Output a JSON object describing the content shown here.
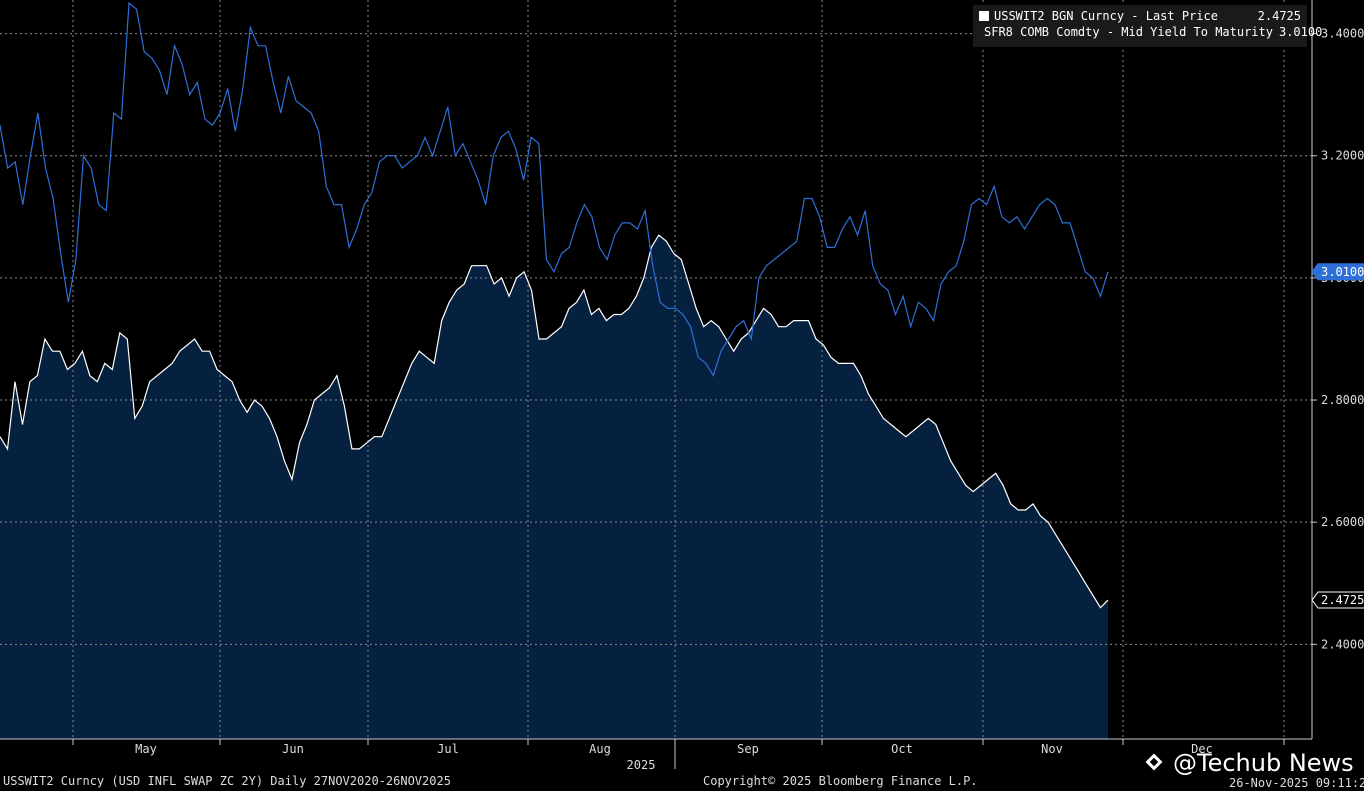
{
  "legend": {
    "items": [
      {
        "label": "USSWIT2 BGN Curncy - Last Price",
        "value": "2.4725",
        "color": "#ffffff"
      },
      {
        "label": "SFR8 COMB Comdty - Mid Yield To Maturity",
        "value": "3.0100",
        "color": "#2e6fd8"
      }
    ]
  },
  "footer": {
    "left": "USSWIT2 Curncy (USD INFL SWAP ZC 2Y) Daily 27NOV2020-26NOV2025",
    "center": "Copyright© 2025 Bloomberg Finance L.P.",
    "right": "26-Nov-2025 09:11:24"
  },
  "watermark": {
    "text": "@Techub News",
    "icon": "diamond-logo-icon"
  },
  "chart_data": {
    "type": "line",
    "x_axis": {
      "ticks": [
        "May",
        "Jun",
        "Jul",
        "Aug",
        "Sep",
        "Oct",
        "Nov",
        "Dec"
      ],
      "year_label": "2025"
    },
    "y_axis": {
      "ticks": [
        "2.4000",
        "2.6000",
        "2.8000",
        "3.0000",
        "3.2000",
        "3.4000"
      ],
      "range": [
        2.245,
        3.455
      ],
      "position": "right"
    },
    "grid": true,
    "legend_position": "top-right",
    "series": [
      {
        "name": "USSWIT2 BGN Curncy - Last Price",
        "last_value_label": "2.4725",
        "color": "#ffffff",
        "fill": "#06203f",
        "values": [
          2.74,
          2.72,
          2.83,
          2.76,
          2.83,
          2.84,
          2.9,
          2.88,
          2.88,
          2.85,
          2.86,
          2.88,
          2.84,
          2.83,
          2.86,
          2.85,
          2.91,
          2.9,
          2.77,
          2.79,
          2.83,
          2.84,
          2.85,
          2.86,
          2.88,
          2.89,
          2.9,
          2.88,
          2.88,
          2.85,
          2.84,
          2.83,
          2.8,
          2.78,
          2.8,
          2.79,
          2.77,
          2.74,
          2.7,
          2.67,
          2.73,
          2.76,
          2.8,
          2.81,
          2.82,
          2.84,
          2.79,
          2.72,
          2.72,
          2.73,
          2.74,
          2.74,
          2.77,
          2.8,
          2.83,
          2.86,
          2.88,
          2.87,
          2.86,
          2.93,
          2.96,
          2.98,
          2.99,
          3.02,
          3.02,
          3.02,
          2.99,
          3.0,
          2.97,
          3.0,
          3.01,
          2.98,
          2.9,
          2.9,
          2.91,
          2.92,
          2.95,
          2.96,
          2.98,
          2.94,
          2.95,
          2.93,
          2.94,
          2.94,
          2.95,
          2.97,
          3.0,
          3.05,
          3.07,
          3.06,
          3.04,
          3.03,
          2.99,
          2.95,
          2.92,
          2.93,
          2.92,
          2.9,
          2.88,
          2.9,
          2.91,
          2.93,
          2.95,
          2.94,
          2.92,
          2.92,
          2.93,
          2.93,
          2.93,
          2.9,
          2.89,
          2.87,
          2.86,
          2.86,
          2.86,
          2.84,
          2.81,
          2.79,
          2.77,
          2.76,
          2.75,
          2.74,
          2.75,
          2.76,
          2.77,
          2.76,
          2.73,
          2.7,
          2.68,
          2.66,
          2.65,
          2.66,
          2.67,
          2.68,
          2.66,
          2.63,
          2.62,
          2.62,
          2.63,
          2.61,
          2.6,
          2.58,
          2.56,
          2.54,
          2.52,
          2.5,
          2.48,
          2.46,
          2.4725
        ]
      },
      {
        "name": "SFR8 COMB Comdty - Mid Yield To Maturity",
        "last_value_label": "3.0100",
        "color": "#2e6fd8",
        "values": [
          3.25,
          3.18,
          3.19,
          3.12,
          3.2,
          3.27,
          3.18,
          3.13,
          3.04,
          2.96,
          3.03,
          3.2,
          3.18,
          3.12,
          3.11,
          3.27,
          3.26,
          3.45,
          3.44,
          3.37,
          3.36,
          3.34,
          3.3,
          3.38,
          3.35,
          3.3,
          3.32,
          3.26,
          3.25,
          3.27,
          3.31,
          3.24,
          3.31,
          3.41,
          3.38,
          3.38,
          3.32,
          3.27,
          3.33,
          3.29,
          3.28,
          3.27,
          3.24,
          3.15,
          3.12,
          3.12,
          3.05,
          3.08,
          3.12,
          3.14,
          3.19,
          3.2,
          3.2,
          3.18,
          3.19,
          3.2,
          3.23,
          3.2,
          3.24,
          3.28,
          3.2,
          3.22,
          3.19,
          3.16,
          3.12,
          3.2,
          3.23,
          3.24,
          3.21,
          3.16,
          3.23,
          3.22,
          3.03,
          3.01,
          3.04,
          3.05,
          3.09,
          3.12,
          3.1,
          3.05,
          3.03,
          3.07,
          3.09,
          3.09,
          3.08,
          3.11,
          3.02,
          2.96,
          2.95,
          2.95,
          2.94,
          2.92,
          2.87,
          2.86,
          2.84,
          2.88,
          2.9,
          2.92,
          2.93,
          2.9,
          3.0,
          3.02,
          3.03,
          3.04,
          3.05,
          3.06,
          3.13,
          3.13,
          3.1,
          3.05,
          3.05,
          3.08,
          3.1,
          3.07,
          3.11,
          3.02,
          2.99,
          2.98,
          2.94,
          2.97,
          2.92,
          2.96,
          2.95,
          2.93,
          2.99,
          3.01,
          3.02,
          3.06,
          3.12,
          3.13,
          3.12,
          3.15,
          3.1,
          3.09,
          3.1,
          3.08,
          3.1,
          3.12,
          3.13,
          3.12,
          3.09,
          3.09,
          3.05,
          3.01,
          3.0,
          2.97,
          3.01
        ]
      }
    ]
  }
}
